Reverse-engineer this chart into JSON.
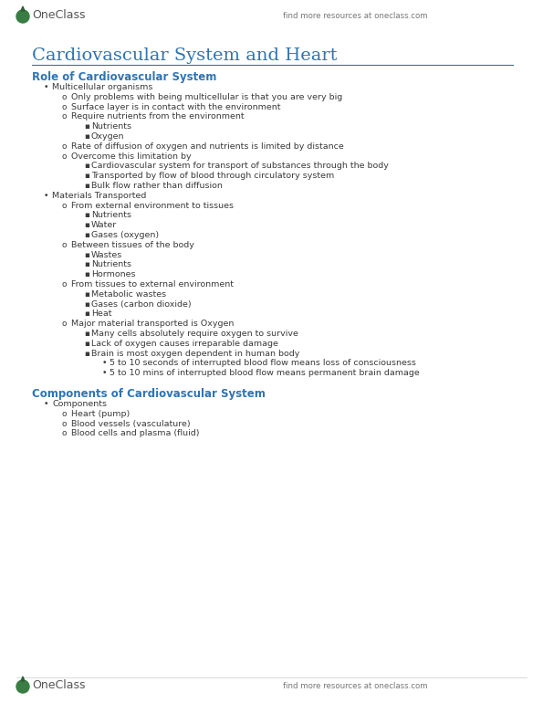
{
  "page_title": "Cardiovascular System and Heart",
  "page_title_color": "#2E74B5",
  "header_text": "find more resources at oneclass.com",
  "bg_color": "#FFFFFF",
  "divider_color": "#2E74B5",
  "section1_title": "Role of Cardiovascular System",
  "section1_color": "#2E74B5",
  "section2_title": "Components of Cardiovascular System",
  "section2_color": "#2E74B5",
  "body_color": "#3A3A3A",
  "logo_text_color": "#555555",
  "logo_circle_color": "#3A7D44",
  "body_fontsize": 6.8,
  "title_fontsize": 14,
  "section_fontsize": 8.5,
  "header_fontsize": 6.2,
  "logo_fontsize": 9,
  "content": [
    {
      "level": 1,
      "text": "Multicellular organisms"
    },
    {
      "level": 2,
      "text": "Only problems with being multicellular is that you are very big"
    },
    {
      "level": 2,
      "text": "Surface layer is in contact with the environment"
    },
    {
      "level": 2,
      "text": "Require nutrients from the environment"
    },
    {
      "level": 3,
      "text": "Nutrients"
    },
    {
      "level": 3,
      "text": "Oxygen"
    },
    {
      "level": 2,
      "text": "Rate of diffusion of oxygen and nutrients is limited by distance"
    },
    {
      "level": 2,
      "text": "Overcome this limitation by"
    },
    {
      "level": 3,
      "text": "Cardiovascular system for transport of substances through the body"
    },
    {
      "level": 3,
      "text": "Transported by flow of blood through circulatory system"
    },
    {
      "level": 3,
      "text": "Bulk flow rather than diffusion"
    },
    {
      "level": 1,
      "text": "Materials Transported"
    },
    {
      "level": 2,
      "text": "From external environment to tissues"
    },
    {
      "level": 3,
      "text": "Nutrients"
    },
    {
      "level": 3,
      "text": "Water"
    },
    {
      "level": 3,
      "text": "Gases (oxygen)"
    },
    {
      "level": 2,
      "text": "Between tissues of the body"
    },
    {
      "level": 3,
      "text": "Wastes"
    },
    {
      "level": 3,
      "text": "Nutrients"
    },
    {
      "level": 3,
      "text": "Hormones"
    },
    {
      "level": 2,
      "text": "From tissues to external environment"
    },
    {
      "level": 3,
      "text": "Metabolic wastes"
    },
    {
      "level": 3,
      "text": "Gases (carbon dioxide)"
    },
    {
      "level": 3,
      "text": "Heat"
    },
    {
      "level": 2,
      "text": "Major material transported is Oxygen"
    },
    {
      "level": 3,
      "text": "Many cells absolutely require oxygen to survive"
    },
    {
      "level": 3,
      "text": "Lack of oxygen causes irreparable damage"
    },
    {
      "level": 3,
      "text": "Brain is most oxygen dependent in human body"
    },
    {
      "level": 4,
      "text": "5 to 10 seconds of interrupted blood flow means loss of consciousness"
    },
    {
      "level": 4,
      "text": "5 to 10 mins of interrupted blood flow means permanent brain damage"
    }
  ],
  "section2_content": [
    {
      "level": 1,
      "text": "Components"
    },
    {
      "level": 2,
      "text": "Heart (pump)"
    },
    {
      "level": 2,
      "text": "Blood vessels (vasculature)"
    },
    {
      "level": 2,
      "text": "Blood cells and plasma (fluid)"
    }
  ]
}
